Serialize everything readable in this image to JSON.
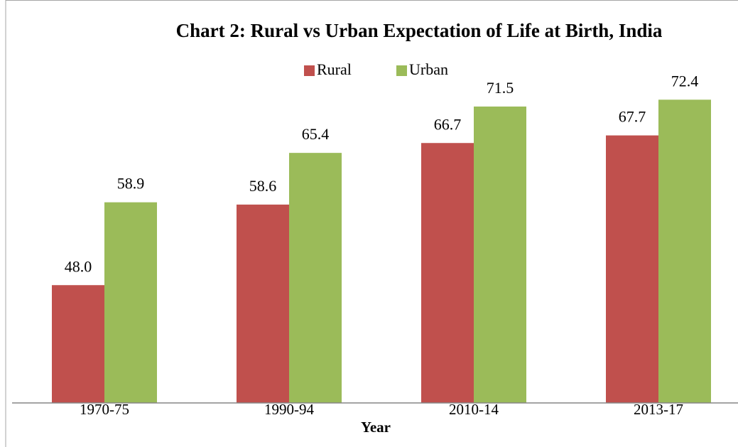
{
  "chart_data": {
    "type": "bar",
    "title": "Chart 2: Rural vs Urban Expectation of Life at Birth, India",
    "x_label": "Year",
    "categories": [
      "1970-75",
      "1990-94",
      "2010-14",
      "2013-17"
    ],
    "series": [
      {
        "name": "Rural",
        "color": "#c0504d",
        "values": [
          48.0,
          58.6,
          66.7,
          67.7
        ],
        "value_labels": [
          "48.0",
          "58.6",
          "66.7",
          "67.7"
        ]
      },
      {
        "name": "Urban",
        "color": "#9bbb59",
        "values": [
          58.9,
          65.4,
          71.5,
          72.4
        ],
        "value_labels": [
          "58.9",
          "65.4",
          "71.5",
          "72.4"
        ]
      }
    ],
    "ylim": [
      32.5,
      80
    ],
    "legend": "top"
  }
}
